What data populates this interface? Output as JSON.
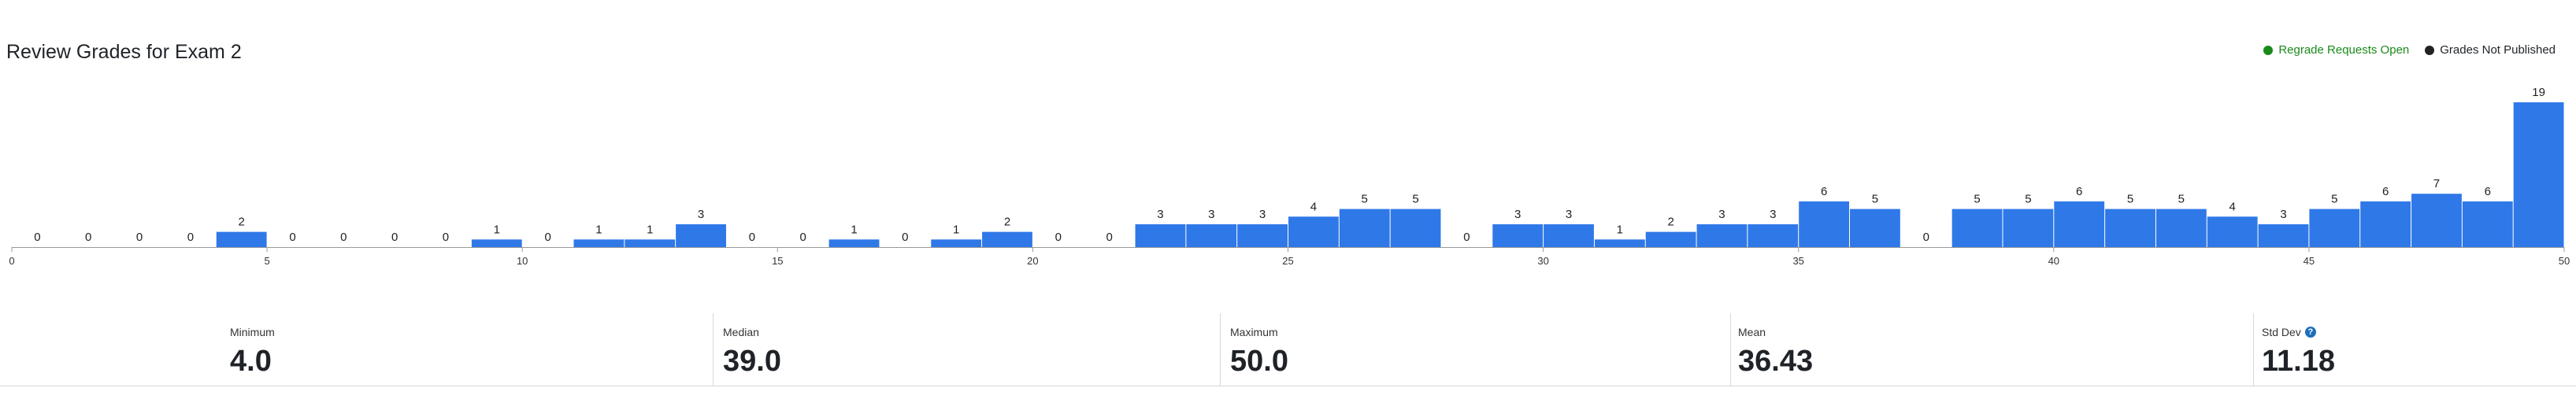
{
  "header": {
    "title": "Review Grades for Exam 2",
    "legend": [
      {
        "label": "Regrade Requests Open",
        "color": "#1a8a1a"
      },
      {
        "label": "Grades Not Published",
        "color": "#222222"
      }
    ]
  },
  "chart_data": {
    "type": "bar",
    "x": [
      0,
      1,
      2,
      3,
      4,
      5,
      6,
      7,
      8,
      9,
      10,
      11,
      12,
      13,
      14,
      15,
      16,
      17,
      18,
      19,
      20,
      21,
      22,
      23,
      24,
      25,
      26,
      27,
      28,
      29,
      30,
      31,
      32,
      33,
      34,
      35,
      36,
      37,
      38,
      39,
      40,
      41,
      42,
      43,
      44,
      45,
      46,
      47,
      48,
      49
    ],
    "values": [
      0,
      0,
      0,
      0,
      2,
      0,
      0,
      0,
      0,
      1,
      0,
      1,
      1,
      3,
      0,
      0,
      1,
      0,
      1,
      2,
      0,
      0,
      3,
      3,
      3,
      4,
      5,
      5,
      0,
      3,
      3,
      1,
      2,
      3,
      3,
      6,
      5,
      0,
      5,
      5,
      6,
      5,
      5,
      4,
      3,
      5,
      6,
      7,
      6,
      19
    ],
    "x_ticks": [
      0,
      5,
      10,
      15,
      20,
      25,
      30,
      35,
      40,
      45,
      50
    ],
    "xlim": [
      0,
      50
    ],
    "color": "#2f78e8",
    "grid": false
  },
  "stats": [
    {
      "label": "Minimum",
      "value": "4.0"
    },
    {
      "label": "Median",
      "value": "39.0"
    },
    {
      "label": "Maximum",
      "value": "50.0"
    },
    {
      "label": "Mean",
      "value": "36.43"
    },
    {
      "label": "Std Dev",
      "value": "11.18",
      "icon": "help-icon"
    }
  ]
}
